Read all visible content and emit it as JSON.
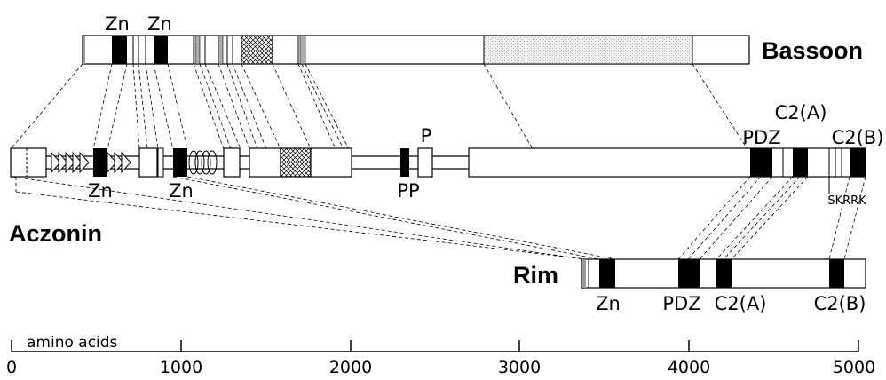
{
  "proteins": {
    "top": "Bassoon",
    "middle": "Aczonin",
    "bottom": "Rim"
  },
  "domains": {
    "zn": "Zn",
    "pdz": "PDZ",
    "c2a": "C2(A)",
    "c2b": "C2(B)",
    "p": "P",
    "pp": "PP",
    "skrrk": "SKRRK"
  },
  "scale": {
    "label": "amino acids",
    "ticks": [
      "0",
      "1000",
      "2000",
      "3000",
      "4000",
      "5000"
    ]
  }
}
